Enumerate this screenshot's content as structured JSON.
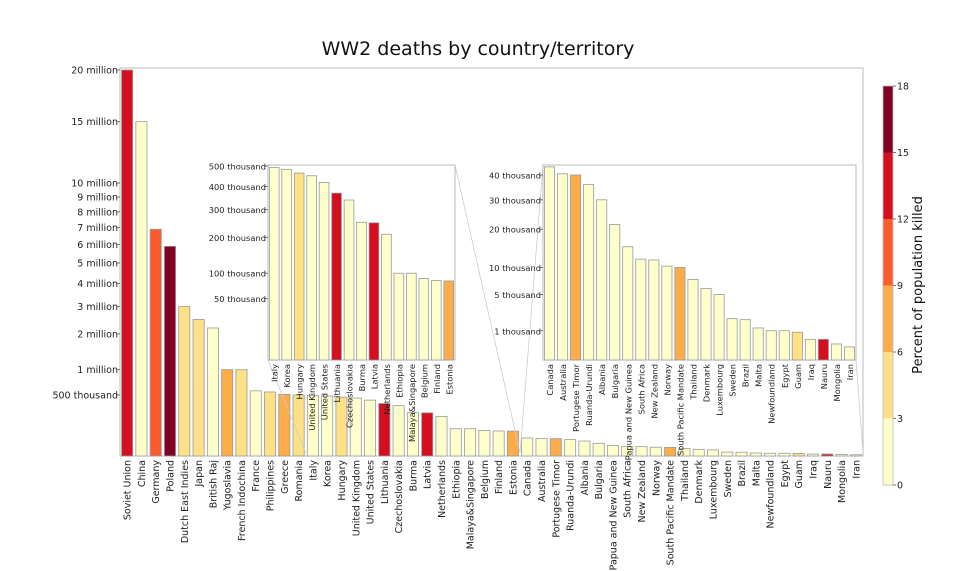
{
  "chart_data": [
    {
      "id": "main",
      "type": "bar",
      "title": "WW2 deaths by country/territory",
      "xlabel": "",
      "ylabel": "",
      "y_scale": "sqrt",
      "ylim": [
        0,
        20000000
      ],
      "y_ticks": [
        {
          "value": 500000,
          "label": "500 thousand"
        },
        {
          "value": 1000000,
          "label": "1 million"
        },
        {
          "value": 2000000,
          "label": "2 million"
        },
        {
          "value": 3000000,
          "label": "3 million"
        },
        {
          "value": 4000000,
          "label": "4 million"
        },
        {
          "value": 5000000,
          "label": "5 million"
        },
        {
          "value": 6000000,
          "label": "6 million"
        },
        {
          "value": 7000000,
          "label": "7 million"
        },
        {
          "value": 8000000,
          "label": "8 million"
        },
        {
          "value": 9000000,
          "label": "9 million"
        },
        {
          "value": 10000000,
          "label": "10 million"
        },
        {
          "value": 15000000,
          "label": "15 million"
        },
        {
          "value": 20000000,
          "label": "20 million"
        }
      ],
      "grid": false,
      "categories": [
        "Soviet Union",
        "China",
        "Germany",
        "Poland",
        "Dutch East Indies",
        "Japan",
        "British Raj",
        "Yugoslavia",
        "French Indochina",
        "France",
        "Philippines",
        "Greece",
        "Romania",
        "Italy",
        "Korea",
        "Hungary",
        "United Kingdom",
        "United States",
        "Lithuania",
        "Czechoslovakia",
        "Burma",
        "Latvia",
        "Netherlands",
        "Ethiopia",
        "Malaya&Singapore",
        "Belgium",
        "Finland",
        "Estonia",
        "Canada",
        "Australia",
        "Portugese Timor",
        "Ruanda-Urundi",
        "Albania",
        "Bulgaria",
        "Papua and New Guinea",
        "South Africa",
        "New Zealand",
        "Norway",
        "South Pacific Mandate",
        "Thailand",
        "Denmark",
        "Luxembourg",
        "Sweden",
        "Brazil",
        "Malta",
        "Newfoundland",
        "Egypt",
        "Guam",
        "Iraq",
        "Nauru",
        "Mongolia",
        "Iran"
      ],
      "values": [
        20000000,
        15000000,
        6900000,
        5900000,
        3000000,
        2500000,
        2200000,
        1000000,
        1000000,
        570000,
        550000,
        510000,
        500000,
        492000,
        483000,
        464000,
        451000,
        419000,
        370000,
        340000,
        252000,
        250000,
        210000,
        100000,
        100000,
        88000,
        84000,
        83000,
        43600,
        40500,
        40000,
        36000,
        30000,
        21500,
        15000,
        11900,
        11700,
        10300,
        10000,
        7600,
        6000,
        5000,
        2000,
        1900,
        1200,
        1000,
        1000,
        900,
        500,
        500,
        300,
        200
      ],
      "percent_killed": [
        13.7,
        2.0,
        9.0,
        17.0,
        4.0,
        3.5,
        0.6,
        7.0,
        5.0,
        1.4,
        3.5,
        7.0,
        3.0,
        1.0,
        2.0,
        5.0,
        0.9,
        0.3,
        13.0,
        2.5,
        1.0,
        14.0,
        2.3,
        0.6,
        2.0,
        1.0,
        2.2,
        7.5,
        0.4,
        0.6,
        8.5,
        1.0,
        2.5,
        0.3,
        1.0,
        0.1,
        0.7,
        0.3,
        8.0,
        0.1,
        0.1,
        2.0,
        0.02,
        0.01,
        0.4,
        0.3,
        0.01,
        4.0,
        0.02,
        13.0,
        0.04,
        0.01
      ]
    },
    {
      "id": "inset-1",
      "type": "bar",
      "y_scale": "sqrt",
      "ylim": [
        0,
        500000
      ],
      "y_ticks": [
        {
          "value": 50000,
          "label": "50 thousand"
        },
        {
          "value": 100000,
          "label": "100 thousand"
        },
        {
          "value": 200000,
          "label": "200 thousand"
        },
        {
          "value": 300000,
          "label": "300 thousand"
        },
        {
          "value": 400000,
          "label": "400 thousand"
        },
        {
          "value": 500000,
          "label": "500 thousand"
        }
      ],
      "categories": [
        "Italy",
        "Korea",
        "Hungary",
        "United Kingdom",
        "United States",
        "Lithuania",
        "Czechoslovakia",
        "Burma",
        "Latvia",
        "Netherlands",
        "Ethiopia",
        "Malaya&Singapore",
        "Belgium",
        "Finland",
        "Estonia"
      ],
      "source_range": [
        13,
        27
      ]
    },
    {
      "id": "inset-2",
      "type": "bar",
      "y_scale": "sqrt",
      "ylim": [
        0,
        44000
      ],
      "y_ticks": [
        {
          "value": 1000,
          "label": "1 thousand"
        },
        {
          "value": 5000,
          "label": "5 thousand"
        },
        {
          "value": 10000,
          "label": "10 thousand"
        },
        {
          "value": 20000,
          "label": "20 thousand"
        },
        {
          "value": 30000,
          "label": "30 thousand"
        },
        {
          "value": 40000,
          "label": "40 thousand"
        }
      ],
      "categories": [
        "Canada",
        "Australia",
        "Portugese Timor",
        "Ruanda-Urundi",
        "Albania",
        "Bulgaria",
        "Papua and New Guinea",
        "South Africa",
        "New Zealand",
        "Norway",
        "South Pacific Mandate",
        "Thailand",
        "Denmark",
        "Luxembourg",
        "Sweden",
        "Brazil",
        "Malta",
        "Newfoundland",
        "Egypt",
        "Guam",
        "Iraq",
        "Nauru",
        "Mongolia",
        "Iran"
      ],
      "source_range": [
        28,
        51
      ]
    }
  ],
  "colorbar": {
    "label": "Percent of population killed",
    "ticks": [
      "0",
      "3",
      "6",
      "9",
      "12",
      "15",
      "18"
    ],
    "bounds": [
      0,
      3,
      6,
      9,
      12,
      15,
      18
    ],
    "colors": [
      "#ffffcc",
      "#fee087",
      "#fdac4a",
      "#fc5b2e",
      "#d41020",
      "#800026"
    ]
  },
  "labels": {
    "title": "WW2 deaths by country/territory",
    "colorbar_label": "Percent of population killed"
  }
}
